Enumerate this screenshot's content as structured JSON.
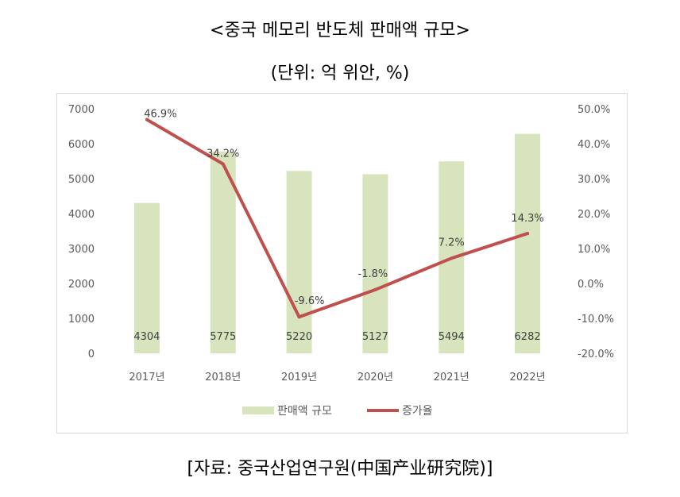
{
  "header": {
    "title": "<중국 메모리 반도체 판매액 규모>",
    "unit": "(단위: 억 위안, %)"
  },
  "footer": {
    "source": "[자료: 중국산업연구원(中国产业研究院)]"
  },
  "chart_data": {
    "type": "bar+line",
    "categories": [
      "2017년",
      "2018년",
      "2019년",
      "2020년",
      "2021년",
      "2022년"
    ],
    "series": [
      {
        "name": "판매액 규모",
        "type": "bar",
        "axis": "left",
        "color": "#d7e4bd",
        "values": [
          4304,
          5775,
          5220,
          5127,
          5494,
          6282
        ],
        "labels": [
          "4304",
          "5775",
          "5220",
          "5127",
          "5494",
          "6282"
        ]
      },
      {
        "name": "증가율",
        "type": "line",
        "axis": "right",
        "color": "#c0504d",
        "values": [
          46.9,
          34.2,
          -9.6,
          -1.8,
          7.2,
          14.3
        ],
        "labels": [
          "46.9%",
          "34.2%",
          "-9.6%",
          "-1.8%",
          "7.2%",
          "14.3%"
        ]
      }
    ],
    "y_left": {
      "lim": [
        0,
        7000
      ],
      "ticks": [
        "0",
        "1000",
        "2000",
        "3000",
        "4000",
        "5000",
        "6000",
        "7000"
      ]
    },
    "y_right": {
      "lim": [
        -20,
        50
      ],
      "ticks": [
        "-20.0%",
        "-10.0%",
        "0.0%",
        "10.0%",
        "20.0%",
        "30.0%",
        "40.0%",
        "50.0%"
      ]
    },
    "legend_position": "bottom",
    "grid": false
  }
}
